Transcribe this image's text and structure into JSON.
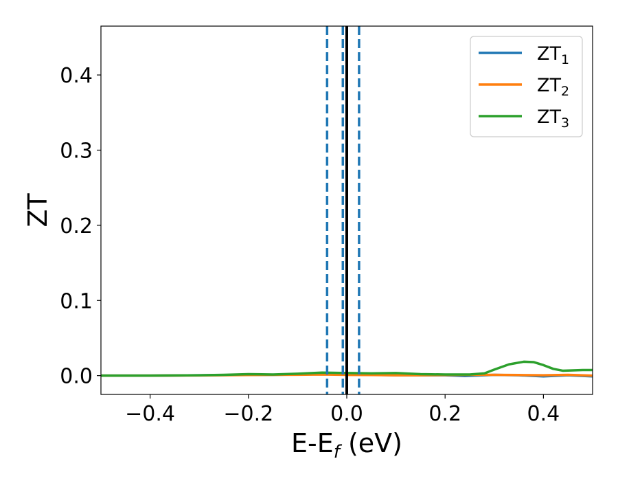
{
  "chart_data": {
    "type": "line",
    "title": "",
    "xlabel": "E-E",
    "xlabel_sub": "f",
    "xlabel_unit": " (eV)",
    "ylabel": "ZT",
    "xlim": [
      -0.5,
      0.5
    ],
    "ylim": [
      -0.025,
      0.465
    ],
    "xticks": [
      -0.4,
      -0.2,
      0.0,
      0.2,
      0.4
    ],
    "xtick_labels": [
      "−0.4",
      "−0.2",
      "0.0",
      "0.2",
      "0.4"
    ],
    "yticks": [
      0.0,
      0.1,
      0.2,
      0.3,
      0.4
    ],
    "ytick_labels": [
      "0.0",
      "0.1",
      "0.2",
      "0.3",
      "0.4"
    ],
    "grid": false,
    "legend_position": "top-right",
    "vertical_lines": [
      {
        "x": -0.04,
        "style": "dashed",
        "color": "#1f77b4"
      },
      {
        "x": -0.008,
        "style": "dashed",
        "color": "#1f77b4"
      },
      {
        "x": 0.0,
        "style": "solid",
        "color": "#000000"
      },
      {
        "x": 0.025,
        "style": "dashed",
        "color": "#1f77b4"
      }
    ],
    "series": [
      {
        "name": "ZT",
        "sub": "1",
        "color": "#1f77b4",
        "x": [
          -0.5,
          -0.4,
          -0.3,
          -0.2,
          -0.15,
          -0.1,
          -0.05,
          0.0,
          0.05,
          0.1,
          0.15,
          0.2,
          0.22,
          0.24,
          0.26,
          0.28,
          0.3,
          0.35,
          0.4,
          0.45,
          0.5
        ],
        "y": [
          0.0,
          0.0,
          0.0005,
          0.001,
          0.001,
          0.0015,
          0.002,
          0.0015,
          0.001,
          0.0005,
          0.0005,
          0.0005,
          0.0,
          -0.0005,
          0.0,
          0.0005,
          0.001,
          0.0005,
          -0.001,
          0.0005,
          -0.001
        ]
      },
      {
        "name": "ZT",
        "sub": "2",
        "color": "#ff7f0e",
        "x": [
          -0.5,
          -0.4,
          -0.3,
          -0.2,
          -0.15,
          -0.1,
          -0.05,
          0.0,
          0.05,
          0.1,
          0.15,
          0.2,
          0.25,
          0.3,
          0.35,
          0.4,
          0.45,
          0.5
        ],
        "y": [
          0.0,
          0.0,
          0.0003,
          0.0008,
          0.001,
          0.0012,
          0.0015,
          0.001,
          0.0008,
          0.0005,
          0.0005,
          0.0008,
          0.001,
          0.001,
          0.0008,
          0.0005,
          0.001,
          0.0
        ]
      },
      {
        "name": "ZT",
        "sub": "3",
        "color": "#2ca02c",
        "x": [
          -0.5,
          -0.4,
          -0.35,
          -0.3,
          -0.25,
          -0.2,
          -0.15,
          -0.1,
          -0.05,
          0.0,
          0.05,
          0.1,
          0.15,
          0.2,
          0.25,
          0.28,
          0.3,
          0.33,
          0.36,
          0.38,
          0.4,
          0.42,
          0.44,
          0.46,
          0.48,
          0.5
        ],
        "y": [
          0.0,
          0.0,
          0.0002,
          0.0005,
          0.001,
          0.002,
          0.0015,
          0.0025,
          0.004,
          0.0035,
          0.003,
          0.0035,
          0.002,
          0.0015,
          0.0015,
          0.003,
          0.008,
          0.015,
          0.0185,
          0.018,
          0.014,
          0.009,
          0.0065,
          0.007,
          0.0075,
          0.0075
        ]
      }
    ]
  }
}
